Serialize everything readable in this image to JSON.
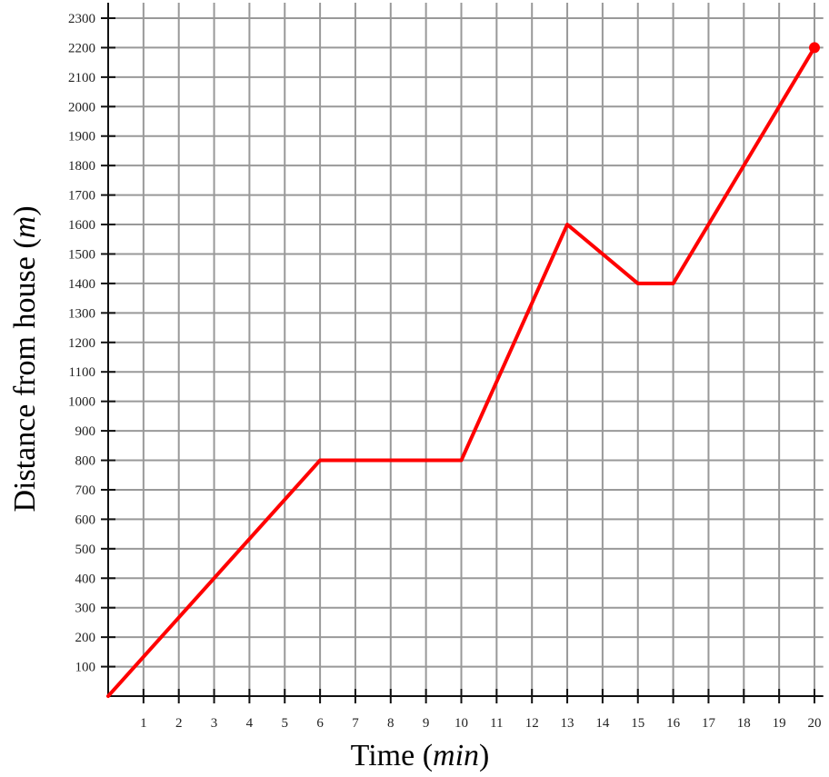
{
  "chart_data": {
    "type": "line",
    "title": "",
    "xlabel": "Time",
    "xlabel_unit": "min",
    "ylabel": "Distance from house",
    "ylabel_unit": "m",
    "xlim": [
      0,
      20
    ],
    "ylim": [
      0,
      2300
    ],
    "x_tick_step": 1,
    "y_tick_step": 100,
    "grid": true,
    "line_color": "#ff0000",
    "grid_color": "#999999",
    "series": [
      {
        "x": [
          0,
          6,
          10,
          13,
          15,
          16,
          20
        ],
        "y": [
          0,
          800,
          800,
          1600,
          1400,
          1400,
          2200
        ]
      }
    ],
    "endpoint_marker": {
      "x": 20,
      "y": 2200
    }
  }
}
